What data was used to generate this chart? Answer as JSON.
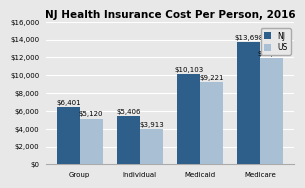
{
  "title": "NJ Health Insurance Cost Per Person, 2016",
  "categories": [
    "Group",
    "Individual",
    "Medicaid",
    "Medicare"
  ],
  "nj_values": [
    6401,
    5406,
    10103,
    13698
  ],
  "us_values": [
    5120,
    3913,
    9221,
    11930
  ],
  "nj_labels": [
    "$6,401",
    "$5,406",
    "$10,103",
    "$13,698"
  ],
  "us_labels": [
    "$5,120",
    "$3,913",
    "$9,221",
    "$11,930"
  ],
  "nj_color": "#2e5f8a",
  "us_color": "#a8bfd4",
  "ylim": [
    0,
    16000
  ],
  "yticks": [
    0,
    2000,
    4000,
    6000,
    8000,
    10000,
    12000,
    14000,
    16000
  ],
  "ytick_labels": [
    "$0",
    "$2,000",
    "$4,000",
    "$6,000",
    "$8,000",
    "$10,000",
    "$12,000",
    "$14,000",
    "$16,000"
  ],
  "background_color": "#e8e8e8",
  "title_fontsize": 7.5,
  "label_fontsize": 5.0,
  "tick_fontsize": 5.0,
  "legend_fontsize": 5.5,
  "bar_width": 0.38
}
